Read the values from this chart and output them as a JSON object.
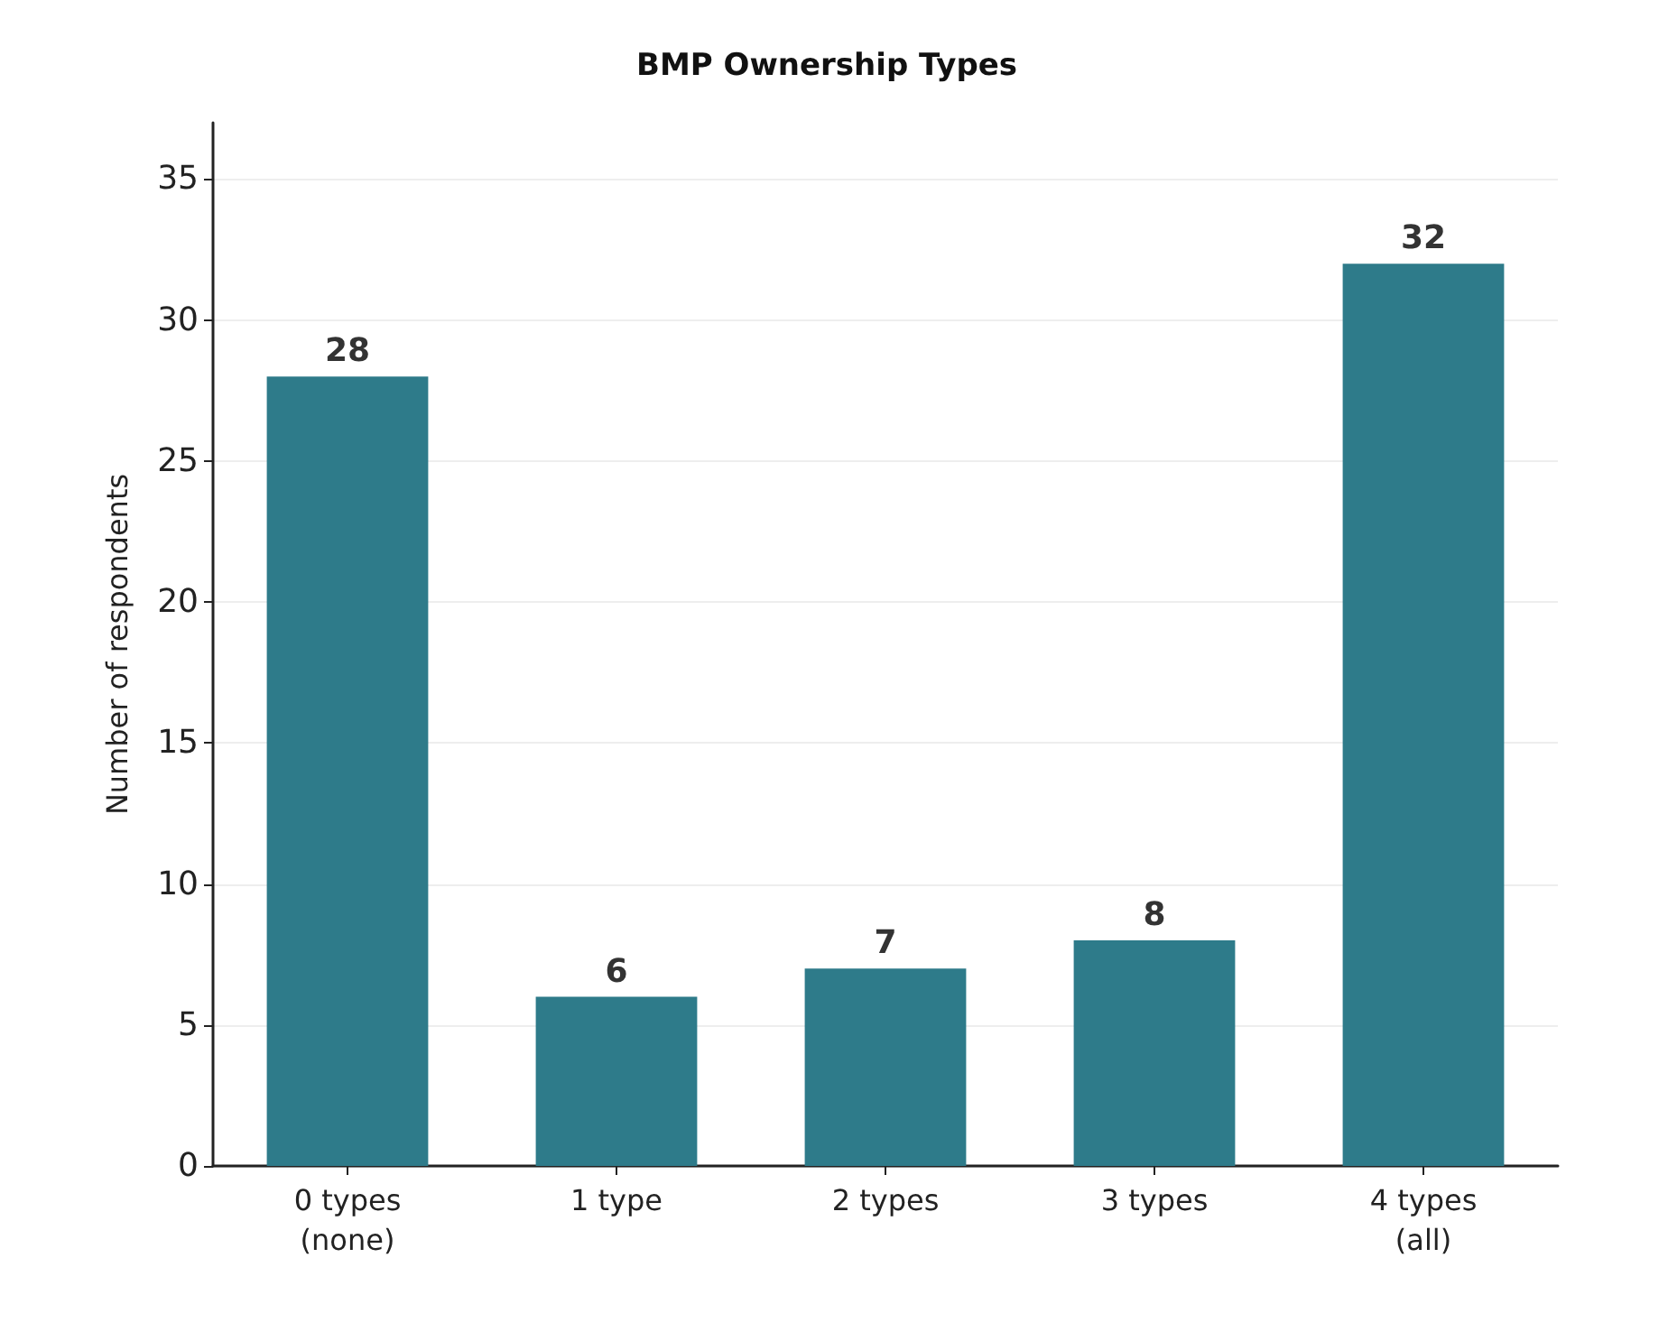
{
  "chart_data": {
    "type": "bar",
    "title": "BMP Ownership Types",
    "ylabel": "Number of respondents",
    "categories": [
      "0 types\n(none)",
      "1 type",
      "2 types",
      "3 types",
      "4 types\n(all)"
    ],
    "values": [
      28,
      6,
      7,
      8,
      32
    ],
    "color": "#2e7b8a",
    "ylim": [
      0,
      37
    ],
    "yticks": [
      0,
      5,
      10,
      15,
      20,
      25,
      30,
      35
    ],
    "grid": "y",
    "data_labels": true
  }
}
